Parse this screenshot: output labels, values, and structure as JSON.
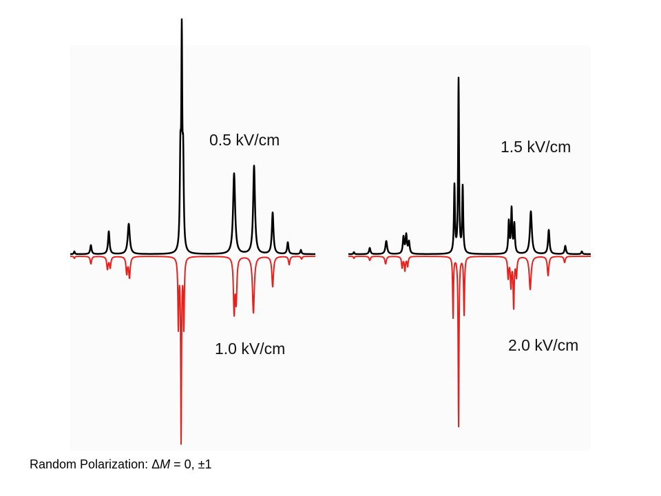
{
  "caption": {
    "prefix": "Random Polarization: ",
    "delta": "Δ",
    "variable": "M",
    "suffix": " = 0, ±1"
  },
  "colors": {
    "upper_trace": "#000000",
    "lower_trace": "#e8201c",
    "panel_bg": "#fbfbfb"
  },
  "chart_data": [
    {
      "type": "line",
      "panel": "left",
      "series": [
        {
          "label": "0.5 kV/cm",
          "direction": "up",
          "color": "#000000",
          "width": 2.5,
          "peaks": [
            {
              "x": 108,
              "h": 4,
              "w": 0.8
            },
            {
              "x": 132,
              "h": 13,
              "w": 1.2
            },
            {
              "x": 158,
              "h": 33,
              "w": 1.3
            },
            {
              "x": 187,
              "h": 44,
              "w": 1.8
            },
            {
              "x": 262,
              "h": 130,
              "w": 1.0
            },
            {
              "x": 264,
              "h": 290,
              "w": 0.8
            },
            {
              "x": 266,
              "h": 125,
              "w": 1.0
            },
            {
              "x": 340,
              "h": 117,
              "w": 1.8
            },
            {
              "x": 369,
              "h": 128,
              "w": 1.6
            },
            {
              "x": 396,
              "h": 60,
              "w": 1.4
            },
            {
              "x": 418,
              "h": 17,
              "w": 1.2
            },
            {
              "x": 437,
              "h": 6,
              "w": 1.0
            }
          ]
        },
        {
          "label": "1.0 kV/cm",
          "direction": "down",
          "color": "#e8201c",
          "width": 2.0,
          "peaks": [
            {
              "x": 108,
              "h": 3,
              "w": 0.8
            },
            {
              "x": 132,
              "h": 11,
              "w": 1.2
            },
            {
              "x": 156,
              "h": 18,
              "w": 1.2
            },
            {
              "x": 160,
              "h": 16,
              "w": 1.2
            },
            {
              "x": 184,
              "h": 24,
              "w": 1.2
            },
            {
              "x": 188,
              "h": 30,
              "w": 1.3
            },
            {
              "x": 259,
              "h": 100,
              "w": 0.8
            },
            {
              "x": 263,
              "h": 265,
              "w": 0.7
            },
            {
              "x": 267,
              "h": 100,
              "w": 0.8
            },
            {
              "x": 340,
              "h": 78,
              "w": 1.2
            },
            {
              "x": 343,
              "h": 62,
              "w": 1.2
            },
            {
              "x": 368,
              "h": 82,
              "w": 1.6
            },
            {
              "x": 396,
              "h": 44,
              "w": 1.4
            },
            {
              "x": 420,
              "h": 12,
              "w": 1.2
            },
            {
              "x": 438,
              "h": 4,
              "w": 1.0
            }
          ]
        }
      ]
    },
    {
      "type": "line",
      "panel": "right",
      "series": [
        {
          "label": "1.5 kV/cm",
          "direction": "up",
          "color": "#000000",
          "width": 2.5,
          "peaks": [
            {
              "x": 514,
              "h": 3,
              "w": 0.8
            },
            {
              "x": 537,
              "h": 9,
              "w": 1.2
            },
            {
              "x": 561,
              "h": 19,
              "w": 1.5
            },
            {
              "x": 586,
              "h": 24,
              "w": 1.2
            },
            {
              "x": 590,
              "h": 27,
              "w": 1.2
            },
            {
              "x": 594,
              "h": 17,
              "w": 1.2
            },
            {
              "x": 660,
              "h": 98,
              "w": 0.9
            },
            {
              "x": 666,
              "h": 252,
              "w": 0.8
            },
            {
              "x": 672,
              "h": 96,
              "w": 0.9
            },
            {
              "x": 739,
              "h": 46,
              "w": 1.0
            },
            {
              "x": 743,
              "h": 64,
              "w": 1.0
            },
            {
              "x": 747,
              "h": 42,
              "w": 1.0
            },
            {
              "x": 771,
              "h": 62,
              "w": 1.7
            },
            {
              "x": 797,
              "h": 35,
              "w": 1.3
            },
            {
              "x": 821,
              "h": 12,
              "w": 1.2
            },
            {
              "x": 845,
              "h": 4,
              "w": 1.0
            }
          ]
        },
        {
          "label": "2.0 kV/cm",
          "direction": "down",
          "color": "#e8201c",
          "width": 2.0,
          "peaks": [
            {
              "x": 514,
              "h": 3,
              "w": 0.8
            },
            {
              "x": 537,
              "h": 6,
              "w": 1.2
            },
            {
              "x": 560,
              "h": 11,
              "w": 1.3
            },
            {
              "x": 584,
              "h": 16,
              "w": 1.0
            },
            {
              "x": 588,
              "h": 20,
              "w": 1.0
            },
            {
              "x": 592,
              "h": 14,
              "w": 1.0
            },
            {
              "x": 658,
              "h": 88,
              "w": 0.7
            },
            {
              "x": 666,
              "h": 246,
              "w": 0.7
            },
            {
              "x": 674,
              "h": 84,
              "w": 0.8
            },
            {
              "x": 738,
              "h": 30,
              "w": 1.0
            },
            {
              "x": 742,
              "h": 42,
              "w": 1.0
            },
            {
              "x": 746,
              "h": 72,
              "w": 0.9
            },
            {
              "x": 750,
              "h": 28,
              "w": 1.0
            },
            {
              "x": 770,
              "h": 48,
              "w": 1.6
            },
            {
              "x": 796,
              "h": 28,
              "w": 1.3
            },
            {
              "x": 820,
              "h": 9,
              "w": 1.2
            }
          ]
        }
      ]
    }
  ]
}
